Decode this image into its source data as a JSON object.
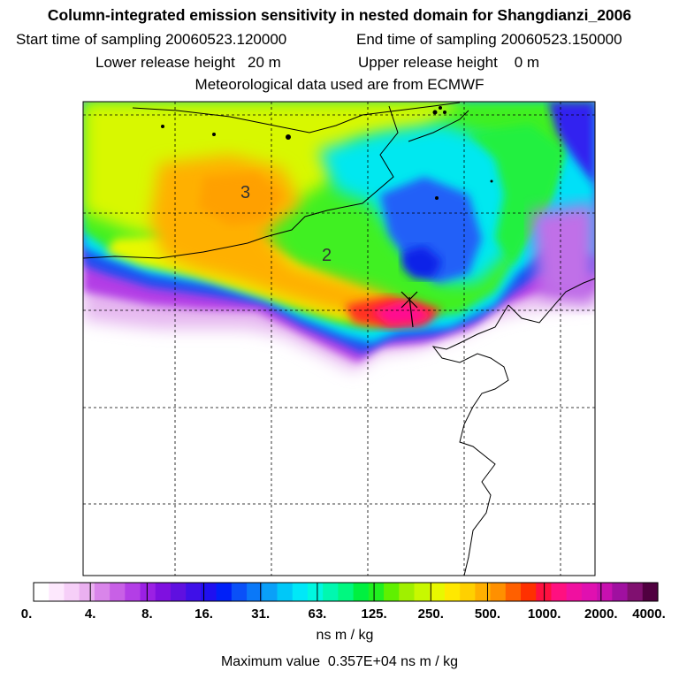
{
  "chart_data": {
    "type": "heatmap",
    "title": "Column-integrated emission sensitivity in nested domain for Shangdianzi_2006",
    "start_label": "Start time of sampling",
    "start_value": "20060523.120000",
    "end_label": "End time of sampling",
    "end_value": "20060523.150000",
    "lower_label": "Lower release height",
    "lower_value": "20 m",
    "upper_label": "Upper release height",
    "upper_value": "0 m",
    "met_line": "Meteorological data used are from ECMWF",
    "colorbar": {
      "tick_labels": [
        "0.",
        "4.",
        "8.",
        "16.",
        "31.",
        "63.",
        "125.",
        "250.",
        "500.",
        "1000.",
        "2000.",
        "4000."
      ],
      "unit": "ns m / kg",
      "colors": [
        "#ffffff",
        "#fde8fd",
        "#f6cff8",
        "#eab0f0",
        "#d985ea",
        "#c860e6",
        "#b33ee6",
        "#9b20e4",
        "#7f10e0",
        "#5f10e0",
        "#3f10e8",
        "#1f10f0",
        "#0020f8",
        "#0a50f8",
        "#0a78f8",
        "#0aa0f8",
        "#00c8f8",
        "#00e8f8",
        "#00f8e0",
        "#00f8b0",
        "#00f880",
        "#00f040",
        "#20f020",
        "#60f000",
        "#a0f000",
        "#c8f800",
        "#e8f800",
        "#ffe800",
        "#ffd000",
        "#ffb000",
        "#ff9000",
        "#ff6000",
        "#ff3000",
        "#ff1040",
        "#ff1080",
        "#f010a0",
        "#e010b0",
        "#c810b0",
        "#a010a0",
        "#801070",
        "#500040"
      ]
    },
    "max_value_label": "Maximum value",
    "max_value": "0.357E+04 ns m / kg",
    "contour_labels": [
      "3",
      "2"
    ],
    "receptor": "Shangdianzi"
  }
}
